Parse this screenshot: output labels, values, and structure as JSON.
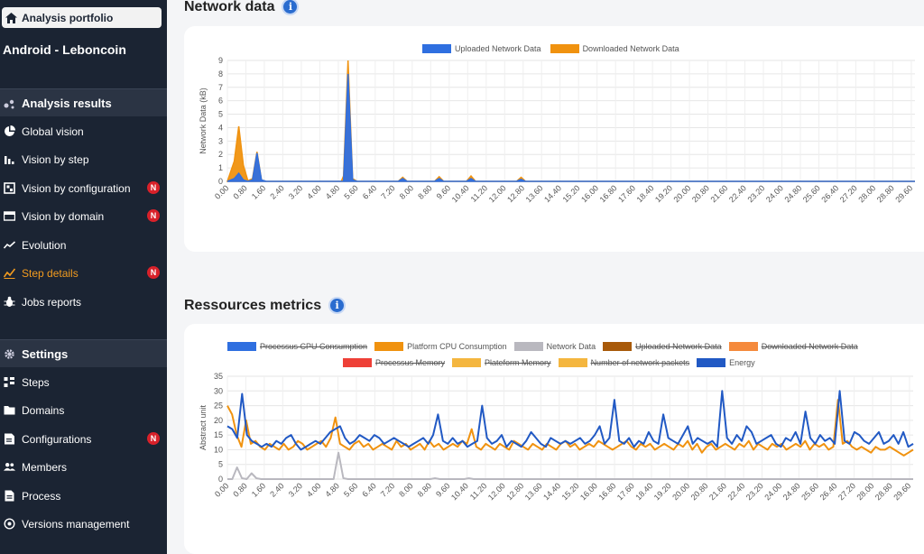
{
  "sidebar": {
    "portfolio_label": "Analysis portfolio",
    "app_name": "Android - Leboncoin",
    "results_title": "Analysis results",
    "results_items": [
      {
        "label": "Global vision",
        "icon": "pie-chart-icon",
        "badge": ""
      },
      {
        "label": "Vision by step",
        "icon": "bar-chart-icon",
        "badge": ""
      },
      {
        "label": "Vision by configuration",
        "icon": "configuration-icon",
        "badge": "N"
      },
      {
        "label": "Vision by domain",
        "icon": "domain-icon",
        "badge": "N"
      },
      {
        "label": "Evolution",
        "icon": "trend-line-icon",
        "badge": ""
      },
      {
        "label": "Step details",
        "icon": "step-details-icon",
        "badge": "N",
        "active": true
      },
      {
        "label": "Jobs reports",
        "icon": "bug-icon",
        "badge": ""
      }
    ],
    "settings_title": "Settings",
    "settings_items": [
      {
        "label": "Steps",
        "icon": "steps-icon"
      },
      {
        "label": "Domains",
        "icon": "folder-icon"
      },
      {
        "label": "Configurations",
        "icon": "configurations-icon",
        "badge": "N"
      },
      {
        "label": "Members",
        "icon": "members-icon"
      },
      {
        "label": "Process",
        "icon": "document-icon"
      },
      {
        "label": "Versions management",
        "icon": "versions-icon"
      }
    ]
  },
  "main": {
    "network_title": "Network data",
    "resources_title": "Ressources metrics"
  },
  "colors": {
    "accent": "#f39c1f",
    "badge": "#d8212a",
    "sidebar_bg": "#1b2433",
    "info": "#2a6ccf"
  },
  "chart_data": [
    {
      "type": "area",
      "ylabel": "Network Data (kB)",
      "ylim": [
        0,
        9
      ],
      "yticks": [
        "0",
        "1",
        "2",
        "3",
        "4",
        "5",
        "6",
        "7",
        "8",
        "9"
      ],
      "legend": [
        {
          "name": "Uploaded Network Data",
          "color": "#2f6fe0",
          "hidden": false
        },
        {
          "name": "Downloaded Network Data",
          "color": "#f0920f",
          "hidden": false
        }
      ],
      "x_tick_labels": [
        "0.00",
        "0.80",
        "1.60",
        "2.40",
        "3.20",
        "4.00",
        "4.80",
        "5.60",
        "6.40",
        "7.20",
        "8.00",
        "8.80",
        "9.60",
        "10.40",
        "11.20",
        "12.00",
        "12.80",
        "13.60",
        "14.40",
        "15.20",
        "16.00",
        "16.80",
        "17.60",
        "18.40",
        "19.20",
        "20.00",
        "20.80",
        "21.60",
        "22.40",
        "23.20",
        "24.00",
        "24.80",
        "25.60",
        "26.40",
        "27.20",
        "28.00",
        "28.80",
        "29.60"
      ],
      "series": [
        {
          "name": "Uploaded Network Data",
          "values": [
            [
              0,
              0
            ],
            [
              0.3,
              0.2
            ],
            [
              0.5,
              0.6
            ],
            [
              0.7,
              0.1
            ],
            [
              0.9,
              0
            ],
            [
              1.1,
              0.1
            ],
            [
              1.3,
              2.1
            ],
            [
              1.5,
              0.1
            ],
            [
              1.7,
              0
            ],
            [
              5.1,
              0
            ],
            [
              5.3,
              8.0
            ],
            [
              5.5,
              0.1
            ],
            [
              5.7,
              0
            ],
            [
              7.5,
              0
            ],
            [
              7.7,
              0.2
            ],
            [
              7.9,
              0
            ],
            [
              9.1,
              0
            ],
            [
              9.3,
              0.2
            ],
            [
              9.5,
              0
            ],
            [
              10.5,
              0
            ],
            [
              10.7,
              0.2
            ],
            [
              10.9,
              0
            ],
            [
              12.7,
              0
            ],
            [
              12.9,
              0.15
            ],
            [
              13.1,
              0
            ],
            [
              30.2,
              0
            ]
          ]
        },
        {
          "name": "Downloaded Network Data",
          "values": [
            [
              0,
              0
            ],
            [
              0.3,
              1.5
            ],
            [
              0.5,
              4.1
            ],
            [
              0.7,
              1.2
            ],
            [
              0.9,
              0.05
            ],
            [
              1.1,
              0.2
            ],
            [
              1.3,
              2.2
            ],
            [
              1.5,
              0.1
            ],
            [
              1.7,
              0
            ],
            [
              5.0,
              0
            ],
            [
              5.1,
              0.4
            ],
            [
              5.3,
              9.0
            ],
            [
              5.5,
              0.2
            ],
            [
              5.7,
              0
            ],
            [
              7.5,
              0
            ],
            [
              7.7,
              0.3
            ],
            [
              7.9,
              0
            ],
            [
              9.1,
              0
            ],
            [
              9.3,
              0.35
            ],
            [
              9.5,
              0
            ],
            [
              10.5,
              0
            ],
            [
              10.7,
              0.4
            ],
            [
              10.9,
              0
            ],
            [
              12.7,
              0
            ],
            [
              12.9,
              0.3
            ],
            [
              13.1,
              0
            ],
            [
              30.2,
              0
            ]
          ]
        }
      ]
    },
    {
      "type": "line",
      "ylabel": "Abstract unit",
      "ylim": [
        0,
        35
      ],
      "yticks": [
        "0",
        "5",
        "10",
        "15",
        "20",
        "25",
        "30",
        "35"
      ],
      "legend": [
        {
          "name": "Processus CPU Consumption",
          "color": "#2f6fe0",
          "hidden": true
        },
        {
          "name": "Platform CPU Consumption",
          "color": "#f0920f",
          "hidden": false
        },
        {
          "name": "Network Data",
          "color": "#b9b8bf",
          "hidden": false
        },
        {
          "name": "Uploaded Network Data",
          "color": "#a85a0a",
          "hidden": true
        },
        {
          "name": "Downloaded Network Data",
          "color": "#f58a3c",
          "hidden": true
        },
        {
          "name": "Processus Memory",
          "color": "#ee4037",
          "hidden": true
        },
        {
          "name": "Plateform Memory",
          "color": "#f4b63f",
          "hidden": true
        },
        {
          "name": "Number of network packets",
          "color": "#f4b63f",
          "hidden": true
        },
        {
          "name": "Energy",
          "color": "#2159c4",
          "hidden": false
        }
      ],
      "x_tick_labels": [
        "0.00",
        "0.80",
        "1.60",
        "2.40",
        "3.20",
        "4.00",
        "4.80",
        "5.60",
        "6.40",
        "7.20",
        "8.00",
        "8.80",
        "9.60",
        "10.40",
        "11.20",
        "12.00",
        "12.80",
        "13.60",
        "14.40",
        "15.20",
        "16.00",
        "16.80",
        "17.60",
        "18.40",
        "19.20",
        "20.00",
        "20.80",
        "21.60",
        "22.40",
        "23.20",
        "24.00",
        "24.80",
        "25.60",
        "26.40",
        "27.20",
        "28.00",
        "28.80",
        "29.60"
      ],
      "series": [
        {
          "name": "Energy",
          "values": [
            18,
            17,
            14,
            29,
            15,
            13,
            12,
            11,
            12,
            11,
            13,
            12,
            14,
            15,
            12,
            10,
            11,
            12,
            13,
            12,
            14,
            16,
            17,
            18,
            14,
            12,
            13,
            15,
            14,
            13,
            15,
            14,
            12,
            13,
            14,
            13,
            12,
            11,
            12,
            13,
            14,
            12,
            15,
            22,
            13,
            12,
            14,
            12,
            13,
            11,
            12,
            13,
            25,
            14,
            12,
            13,
            15,
            11,
            13,
            12,
            11,
            13,
            16,
            14,
            12,
            11,
            14,
            13,
            12,
            13,
            12,
            13,
            14,
            12,
            13,
            15,
            18,
            12,
            14,
            27,
            13,
            12,
            14,
            11,
            13,
            12,
            16,
            13,
            12,
            22,
            14,
            13,
            12,
            15,
            18,
            12,
            14,
            13,
            12,
            13,
            11,
            30,
            14,
            12,
            15,
            13,
            18,
            16,
            12,
            13,
            14,
            15,
            12,
            11,
            14,
            13,
            16,
            12,
            23,
            14,
            12,
            15,
            13,
            14,
            12,
            30,
            13,
            12,
            16,
            15,
            13,
            12,
            14,
            16,
            12,
            13,
            15,
            12,
            16,
            11,
            12
          ]
        },
        {
          "name": "Platform CPU Consumption",
          "values": [
            25,
            22,
            15,
            11,
            20,
            12,
            13,
            11,
            10,
            12,
            11,
            10,
            12,
            10,
            11,
            13,
            12,
            10,
            11,
            12,
            13,
            11,
            14,
            21,
            12,
            11,
            10,
            12,
            13,
            11,
            12,
            10,
            11,
            12,
            11,
            10,
            13,
            11,
            12,
            10,
            11,
            12,
            10,
            13,
            11,
            12,
            10,
            11,
            12,
            11,
            13,
            12,
            17,
            11,
            10,
            12,
            11,
            10,
            12,
            11,
            10,
            13,
            12,
            11,
            10,
            12,
            11,
            10,
            12,
            11,
            10,
            12,
            13,
            11,
            12,
            10,
            11,
            12,
            11,
            13,
            12,
            11,
            10,
            11,
            12,
            13,
            11,
            10,
            12,
            11,
            12,
            10,
            11,
            12,
            11,
            10,
            12,
            11,
            13,
            10,
            12,
            9,
            11,
            12,
            10,
            11,
            12,
            11,
            10,
            12,
            11,
            13,
            10,
            12,
            11,
            10,
            12,
            11,
            12,
            10,
            11,
            12,
            11,
            13,
            10,
            12,
            11,
            12,
            10,
            11,
            27,
            12,
            13,
            11,
            10,
            11,
            10,
            9,
            11,
            10,
            10,
            11,
            10,
            9,
            8,
            9,
            10
          ]
        },
        {
          "name": "Network Data",
          "values": [
            0,
            0,
            4,
            0.3,
            0,
            2,
            0.3,
            0,
            0,
            0,
            0,
            0,
            0,
            0,
            0,
            0,
            0,
            0,
            0,
            0,
            0,
            0,
            0,
            9,
            0.3,
            0,
            0,
            0,
            0,
            0,
            0,
            0,
            0,
            0,
            0,
            0,
            0,
            0,
            0,
            0,
            0,
            0,
            0,
            0.3,
            0,
            0,
            0,
            0,
            0,
            0,
            0.3,
            0,
            0,
            0,
            0,
            0,
            0,
            0,
            0,
            0,
            0,
            0,
            0,
            0,
            0,
            0,
            0,
            0,
            0,
            0,
            0,
            0,
            0,
            0,
            0,
            0,
            0,
            0,
            0,
            0,
            0,
            0,
            0,
            0,
            0,
            0,
            0,
            0,
            0,
            0,
            0,
            0,
            0,
            0,
            0,
            0,
            0,
            0,
            0,
            0,
            0,
            0,
            0,
            0,
            0,
            0,
            0,
            0,
            0,
            0,
            0,
            0,
            0,
            0,
            0,
            0,
            0,
            0,
            0,
            0,
            0,
            0,
            0,
            0,
            0,
            0,
            0,
            0,
            0,
            0,
            0,
            0,
            0,
            0,
            0,
            0,
            0,
            0,
            0,
            0,
            0,
            0,
            0
          ]
        }
      ]
    }
  ]
}
